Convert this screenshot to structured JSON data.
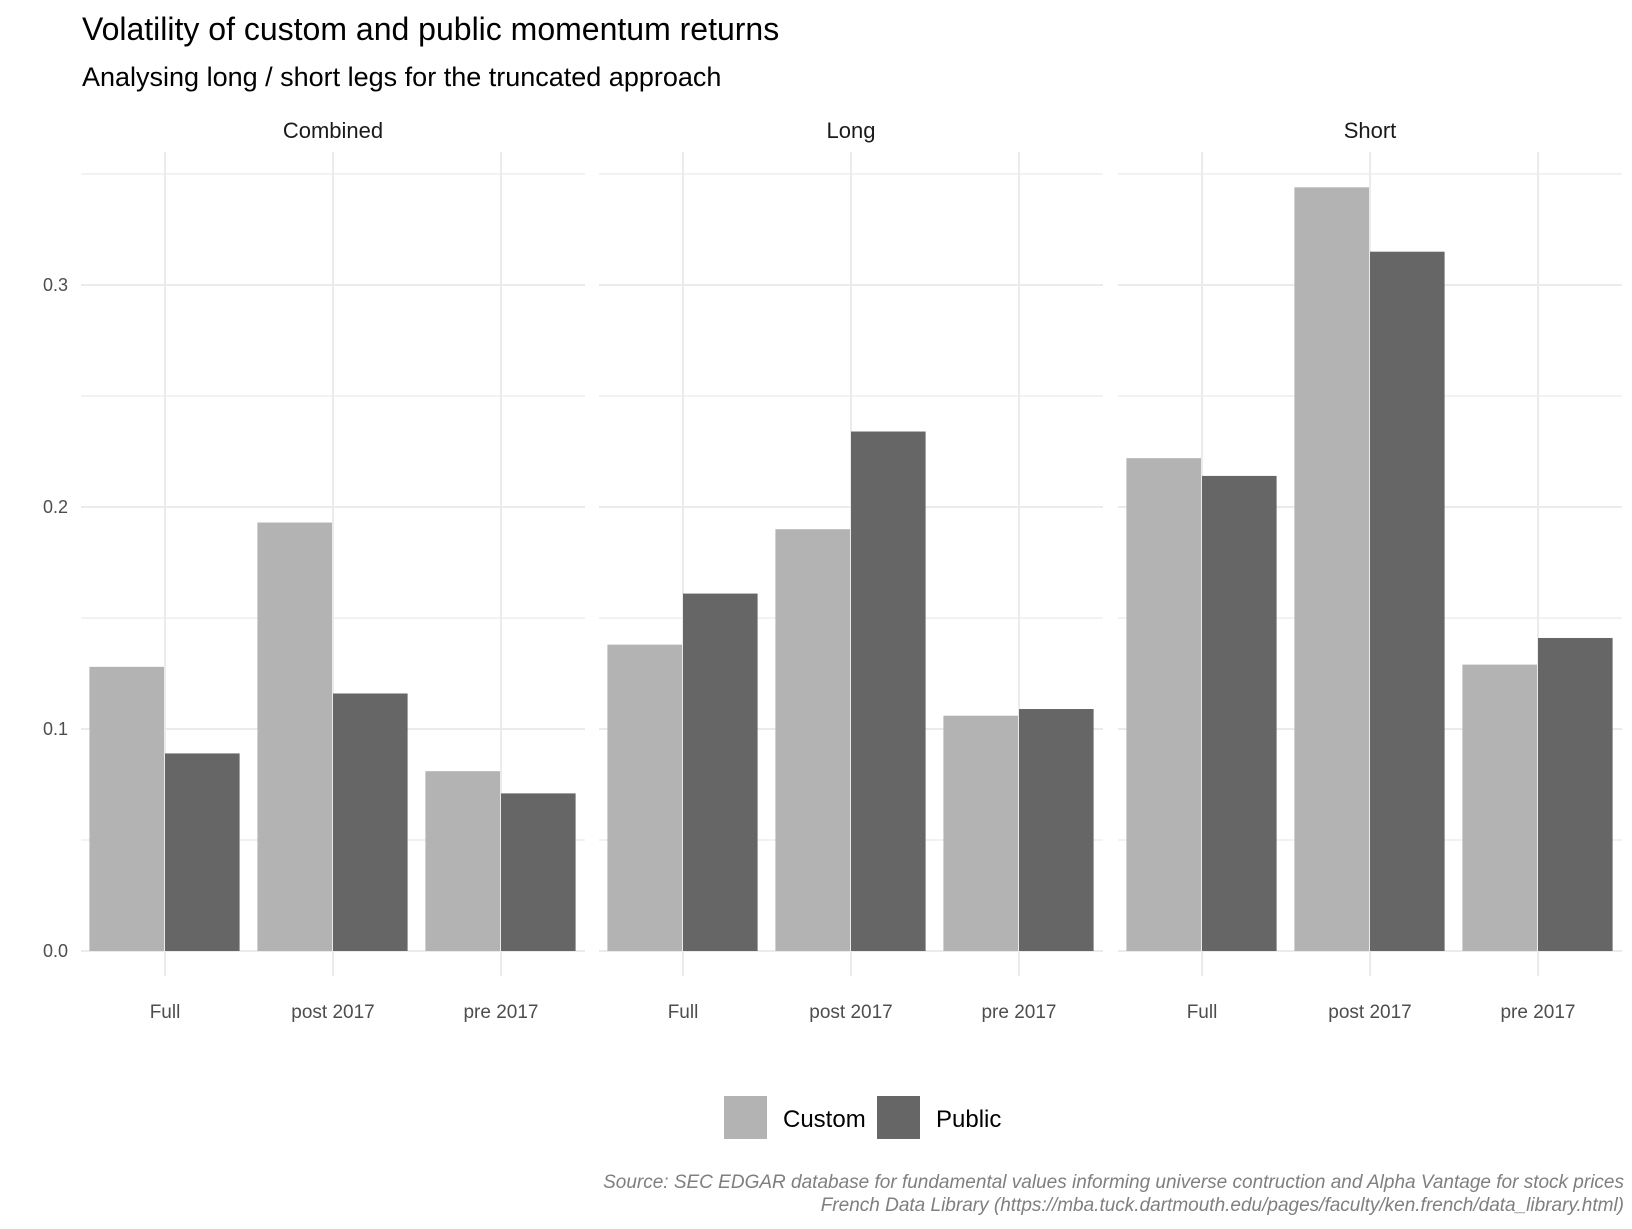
{
  "chart_data": {
    "type": "bar",
    "title": "Volatility of custom and public momentum returns",
    "subtitle": "Analysing long / short legs for the truncated approach",
    "xlabel": "",
    "ylabel": "",
    "ylim": [
      0,
      0.35
    ],
    "y_ticks": [
      "0.0",
      "0.1",
      "0.2",
      "0.3"
    ],
    "y_tick_values": [
      0,
      0.1,
      0.2,
      0.3
    ],
    "grid": true,
    "legend_position": "bottom",
    "categories": [
      "Full",
      "post 2017",
      "pre 2017"
    ],
    "series_names": [
      "Custom",
      "Public"
    ],
    "colors": {
      "Custom": "#b3b3b3",
      "Public": "#666666",
      "grid": "#ebebeb"
    },
    "facets": [
      {
        "name": "Combined",
        "series": [
          {
            "name": "Custom",
            "values": [
              0.128,
              0.193,
              0.081
            ]
          },
          {
            "name": "Public",
            "values": [
              0.089,
              0.116,
              0.071
            ]
          }
        ]
      },
      {
        "name": "Long",
        "series": [
          {
            "name": "Custom",
            "values": [
              0.138,
              0.19,
              0.106
            ]
          },
          {
            "name": "Public",
            "values": [
              0.161,
              0.234,
              0.109
            ]
          }
        ]
      },
      {
        "name": "Short",
        "series": [
          {
            "name": "Custom",
            "values": [
              0.222,
              0.344,
              0.129
            ]
          },
          {
            "name": "Public",
            "values": [
              0.214,
              0.315,
              0.141
            ]
          }
        ]
      }
    ],
    "caption_lines": [
      "Source: SEC EDGAR database for fundamental values informing universe contruction and Alpha Vantage for stock prices",
      "French Data Library (https://mba.tuck.dartmouth.edu/pages/faculty/ken.french/data_library.html)"
    ]
  }
}
